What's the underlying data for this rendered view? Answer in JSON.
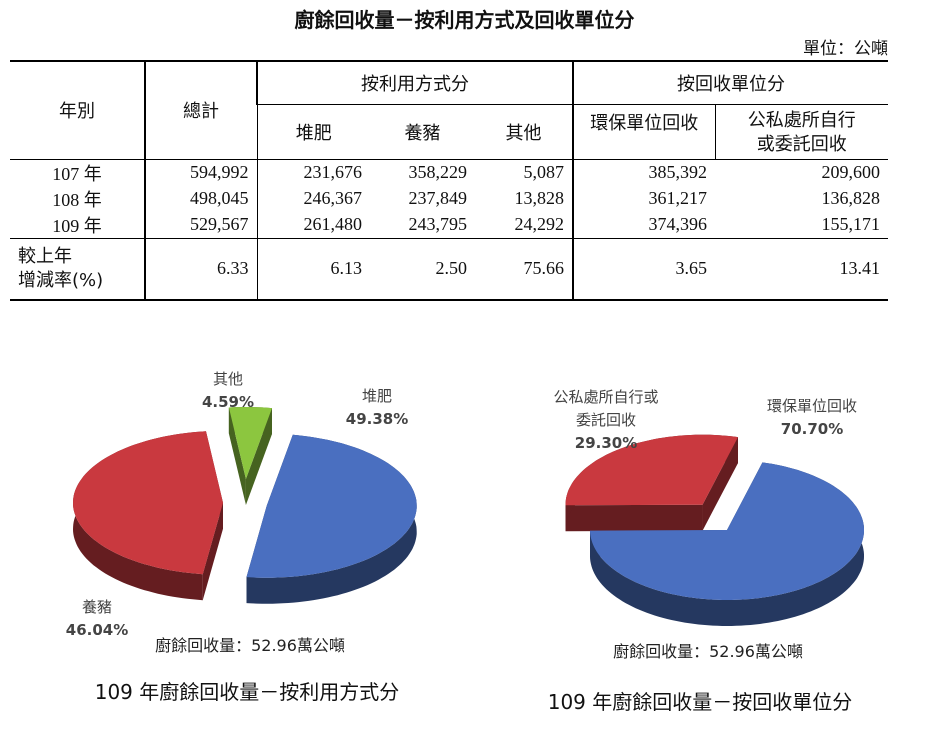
{
  "header": {
    "title": "廚餘回收量－按利用方式及回收單位分",
    "unit": "單位：公噸"
  },
  "table": {
    "columns": {
      "year": "年別",
      "total": "總計",
      "by_use": "按利用方式分",
      "by_unit": "按回收單位分",
      "use": [
        "堆肥",
        "養豬",
        "其他"
      ],
      "unit": [
        "環保單位回收",
        "公私處所自行\n或委託回收"
      ]
    },
    "rows": [
      [
        "107 年",
        "594,992",
        "231,676",
        "358,229",
        "5,087",
        "385,392",
        "209,600"
      ],
      [
        "108 年",
        "498,045",
        "246,367",
        "237,849",
        "13,828",
        "361,217",
        "136,828"
      ],
      [
        "109 年",
        "529,567",
        "261,480",
        "243,795",
        "24,292",
        "374,396",
        "155,171"
      ],
      [
        "較上年\n增減率(%)",
        "6.33",
        "6.13",
        "2.50",
        "75.66",
        "3.65",
        "13.41"
      ]
    ]
  },
  "chart_data": [
    {
      "type": "pie",
      "title": "109 年廚餘回收量－按利用方式分",
      "note": "廚餘回收量：52.96萬公噸",
      "categories": [
        "堆肥",
        "養豬",
        "其他"
      ],
      "values": [
        49.38,
        46.04,
        4.59
      ],
      "value_labels": [
        "49.38%",
        "46.04%",
        "4.59%"
      ],
      "colors": [
        "#4a6fc0",
        "#c9393f",
        "#8cc63f"
      ]
    },
    {
      "type": "pie",
      "title": "109 年廚餘回收量－按回收單位分",
      "note": "廚餘回收量：52.96萬公噸",
      "categories": [
        "環保單位回收",
        "公私處所自行或\n委託回收"
      ],
      "values": [
        70.7,
        29.3
      ],
      "value_labels": [
        "70.70%",
        "29.30%"
      ],
      "colors": [
        "#4a6fc0",
        "#c9393f"
      ]
    }
  ]
}
